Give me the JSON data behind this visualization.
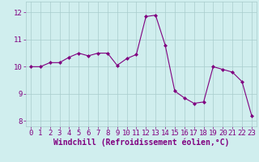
{
  "x": [
    0,
    1,
    2,
    3,
    4,
    5,
    6,
    7,
    8,
    9,
    10,
    11,
    12,
    13,
    14,
    15,
    16,
    17,
    18,
    19,
    20,
    21,
    22,
    23
  ],
  "y": [
    10.0,
    10.0,
    10.15,
    10.15,
    10.35,
    10.5,
    10.4,
    10.5,
    10.5,
    10.05,
    10.3,
    10.45,
    11.85,
    11.9,
    10.8,
    9.1,
    8.85,
    8.65,
    8.7,
    10.0,
    9.9,
    9.8,
    9.45,
    8.2
  ],
  "line_color": "#800080",
  "marker": "D",
  "marker_size": 2.0,
  "bg_color": "#d0eeee",
  "grid_color": "#a8cccc",
  "xlabel": "Windchill (Refroidissement éolien,°C)",
  "xlabel_color": "#800080",
  "xlabel_fontsize": 7,
  "tick_color": "#800080",
  "tick_fontsize": 6.5,
  "ylim": [
    7.8,
    12.4
  ],
  "xlim": [
    -0.5,
    23.5
  ],
  "yticks": [
    8,
    9,
    10,
    11,
    12
  ],
  "xticks": [
    0,
    1,
    2,
    3,
    4,
    5,
    6,
    7,
    8,
    9,
    10,
    11,
    12,
    13,
    14,
    15,
    16,
    17,
    18,
    19,
    20,
    21,
    22,
    23
  ]
}
